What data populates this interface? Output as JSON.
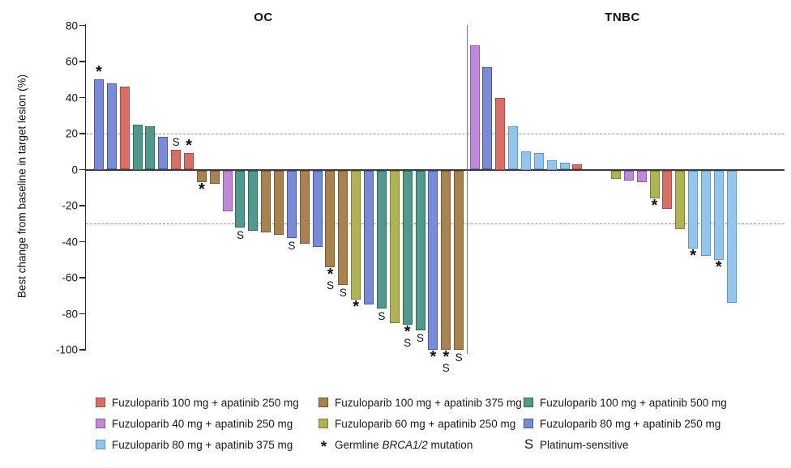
{
  "chart_data": {
    "type": "bar",
    "subtype": "waterfall",
    "ylabel": "Best change from baseline in target lesion (%)",
    "ylim": [
      -100,
      80
    ],
    "yticks": [
      80,
      60,
      40,
      20,
      0,
      -20,
      -40,
      -60,
      -80,
      -100
    ],
    "reference_lines": [
      20,
      -30
    ],
    "grid": "dashed-reference-lines-only",
    "marker_meanings": {
      "*": "Germline BRCA1/2 mutation",
      "S": "Platinum-sensitive"
    },
    "groups": {
      "fz100_ap250": {
        "label": "Fuzuloparib 100 mg + apatinib 250 mg",
        "fill": "#D76F66",
        "border": "#B7463C"
      },
      "fz100_ap375": {
        "label": "Fuzuloparib 100 mg + apatinib 375 mg",
        "fill": "#A8824F",
        "border": "#7A5930"
      },
      "fz100_ap500": {
        "label": "Fuzuloparib 100 mg + apatinib 500 mg",
        "fill": "#4F9A8C",
        "border": "#2D6B5F"
      },
      "fz40_ap250": {
        "label": "Fuzuloparib 40 mg + apatinib 250 mg",
        "fill": "#C08AD9",
        "border": "#9455B8"
      },
      "fz60_ap250": {
        "label": "Fuzuloparib 60 mg + apatinib 250 mg",
        "fill": "#AFB356",
        "border": "#7C812C"
      },
      "fz80_ap250": {
        "label": "Fuzuloparib 80 mg + apatinib 250 mg",
        "fill": "#7A8BD5",
        "border": "#4355B8"
      },
      "fz80_ap375": {
        "label": "Fuzuloparib 80 mg + apatinib 375 mg",
        "fill": "#93C5ED",
        "border": "#5898D5"
      }
    },
    "panels": [
      {
        "title": "OC",
        "bars": [
          {
            "v": 50,
            "g": "fz80_ap250",
            "m": [
              "*"
            ]
          },
          {
            "v": 48,
            "g": "fz80_ap250"
          },
          {
            "v": 46,
            "g": "fz100_ap250"
          },
          {
            "v": 25,
            "g": "fz100_ap500"
          },
          {
            "v": 24,
            "g": "fz100_ap500"
          },
          {
            "v": 18,
            "g": "fz80_ap250"
          },
          {
            "v": 11,
            "g": "fz100_ap250",
            "m": [
              "S"
            ]
          },
          {
            "v": 9,
            "g": "fz100_ap250",
            "m": [
              "*"
            ]
          },
          {
            "v": -7,
            "g": "fz100_ap375",
            "m": [
              "*"
            ]
          },
          {
            "v": -8,
            "g": "fz100_ap375"
          },
          {
            "v": -23,
            "g": "fz40_ap250"
          },
          {
            "v": -32,
            "g": "fz100_ap500",
            "m": [
              "S"
            ]
          },
          {
            "v": -34,
            "g": "fz100_ap500"
          },
          {
            "v": -35,
            "g": "fz100_ap375"
          },
          {
            "v": -36,
            "g": "fz100_ap375"
          },
          {
            "v": -38,
            "g": "fz80_ap250",
            "m": [
              "S"
            ]
          },
          {
            "v": -41,
            "g": "fz100_ap375"
          },
          {
            "v": -43,
            "g": "fz80_ap250"
          },
          {
            "v": -54,
            "g": "fz100_ap375",
            "m": [
              "*",
              "S"
            ]
          },
          {
            "v": -64,
            "g": "fz100_ap375",
            "m": [
              "S"
            ]
          },
          {
            "v": -72,
            "g": "fz60_ap250",
            "m": [
              "*"
            ]
          },
          {
            "v": -75,
            "g": "fz80_ap250"
          },
          {
            "v": -77,
            "g": "fz100_ap500",
            "m": [
              "S"
            ]
          },
          {
            "v": -85,
            "g": "fz60_ap250"
          },
          {
            "v": -86,
            "g": "fz100_ap500",
            "m": [
              "*",
              "S"
            ]
          },
          {
            "v": -89,
            "g": "fz100_ap500",
            "m": [
              "S"
            ]
          },
          {
            "v": -100,
            "g": "fz80_ap250",
            "m": [
              "*"
            ]
          },
          {
            "v": -100,
            "g": "fz100_ap375",
            "m": [
              "*",
              "S"
            ]
          },
          {
            "v": -100,
            "g": "fz100_ap375",
            "m": [
              "S"
            ]
          }
        ]
      },
      {
        "title": "TNBC",
        "bars": [
          {
            "v": 69,
            "g": "fz40_ap250"
          },
          {
            "v": 57,
            "g": "fz80_ap250"
          },
          {
            "v": 40,
            "g": "fz100_ap250"
          },
          {
            "v": 24,
            "g": "fz80_ap375"
          },
          {
            "v": 10,
            "g": "fz80_ap375"
          },
          {
            "v": 9,
            "g": "fz80_ap375"
          },
          {
            "v": 5,
            "g": "fz80_ap375"
          },
          {
            "v": 4,
            "g": "fz80_ap375"
          },
          {
            "v": 3,
            "g": "fz100_ap250"
          },
          {
            "v": 0
          },
          {
            "v": 0
          },
          {
            "v": -5,
            "g": "fz60_ap250"
          },
          {
            "v": -6,
            "g": "fz40_ap250"
          },
          {
            "v": -7,
            "g": "fz40_ap250"
          },
          {
            "v": -16,
            "g": "fz60_ap250",
            "m": [
              "*"
            ]
          },
          {
            "v": -22,
            "g": "fz100_ap250"
          },
          {
            "v": -33,
            "g": "fz60_ap250"
          },
          {
            "v": -44,
            "g": "fz80_ap375",
            "m": [
              "*"
            ]
          },
          {
            "v": -48,
            "g": "fz80_ap375"
          },
          {
            "v": -50,
            "g": "fz80_ap375",
            "m": [
              "*"
            ]
          },
          {
            "v": -74,
            "g": "fz80_ap375"
          }
        ]
      }
    ]
  },
  "legend": {
    "rows": [
      [
        {
          "swatch": "fz100_ap250"
        },
        {
          "swatch": "fz100_ap375"
        },
        {
          "swatch": "fz100_ap500"
        }
      ],
      [
        {
          "swatch": "fz40_ap250"
        },
        {
          "swatch": "fz60_ap250"
        },
        {
          "swatch": "fz80_ap250"
        }
      ],
      [
        {
          "swatch": "fz80_ap375"
        },
        {
          "symbol": "*",
          "parts": [
            {
              "text": "Germline "
            },
            {
              "text": "BRCA1/2",
              "italic": true
            },
            {
              "text": " mutation"
            }
          ]
        },
        {
          "symbol": "S",
          "parts": [
            {
              "text": "Platinum-sensitive"
            }
          ]
        }
      ]
    ]
  }
}
